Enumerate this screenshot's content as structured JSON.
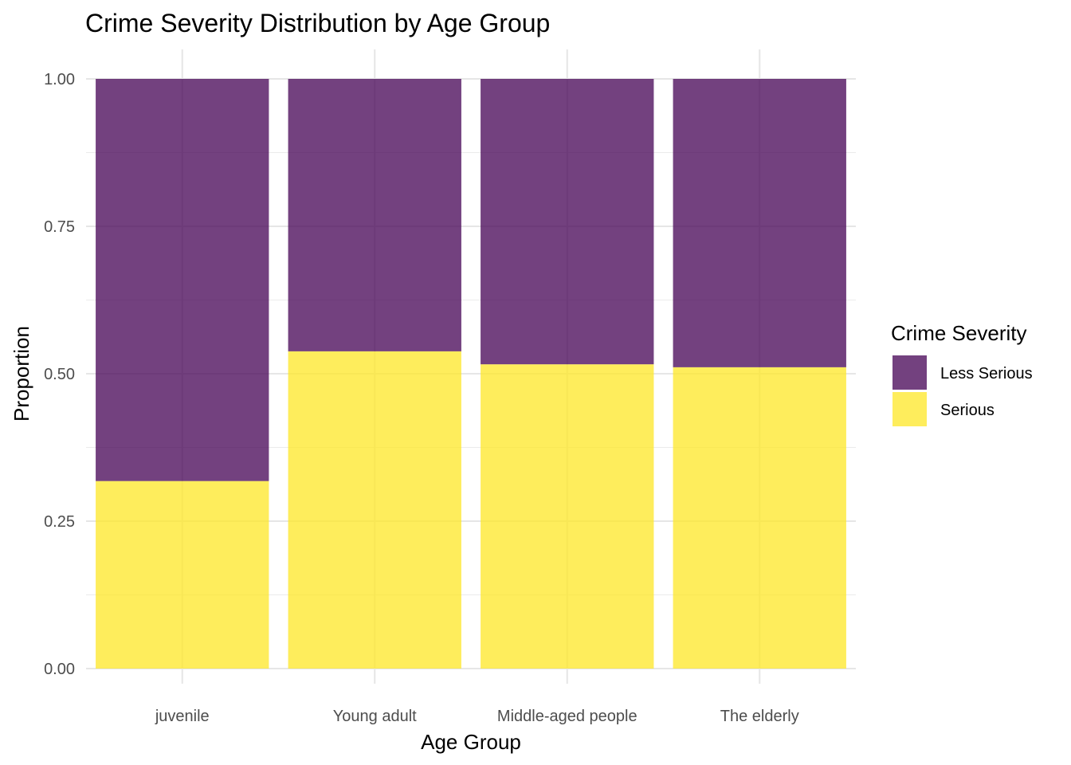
{
  "chart_data": {
    "type": "bar",
    "stacked": true,
    "title": "Crime Severity Distribution by Age Group",
    "xlabel": "Age Group",
    "ylabel": "Proportion",
    "categories": [
      "juvenile",
      "Young adult",
      "Middle-aged people",
      "The elderly"
    ],
    "series": [
      {
        "name": "Serious",
        "values": [
          0.318,
          0.538,
          0.516,
          0.511
        ],
        "color": "#fde725"
      },
      {
        "name": "Less Serious",
        "values": [
          0.682,
          0.462,
          0.484,
          0.489
        ],
        "color": "#440154"
      }
    ],
    "ylim": [
      0,
      1
    ],
    "yticks": [
      "0.00",
      "0.25",
      "0.50",
      "0.75",
      "1.00"
    ],
    "ytick_values": [
      0,
      0.25,
      0.5,
      0.75,
      1.0
    ],
    "bar_opacity": 0.75,
    "grid": true,
    "legend": {
      "title": "Crime Severity",
      "placement": "right",
      "items": [
        {
          "name": "Less Serious",
          "color": "#440154"
        },
        {
          "name": "Serious",
          "color": "#fde725"
        }
      ]
    }
  }
}
